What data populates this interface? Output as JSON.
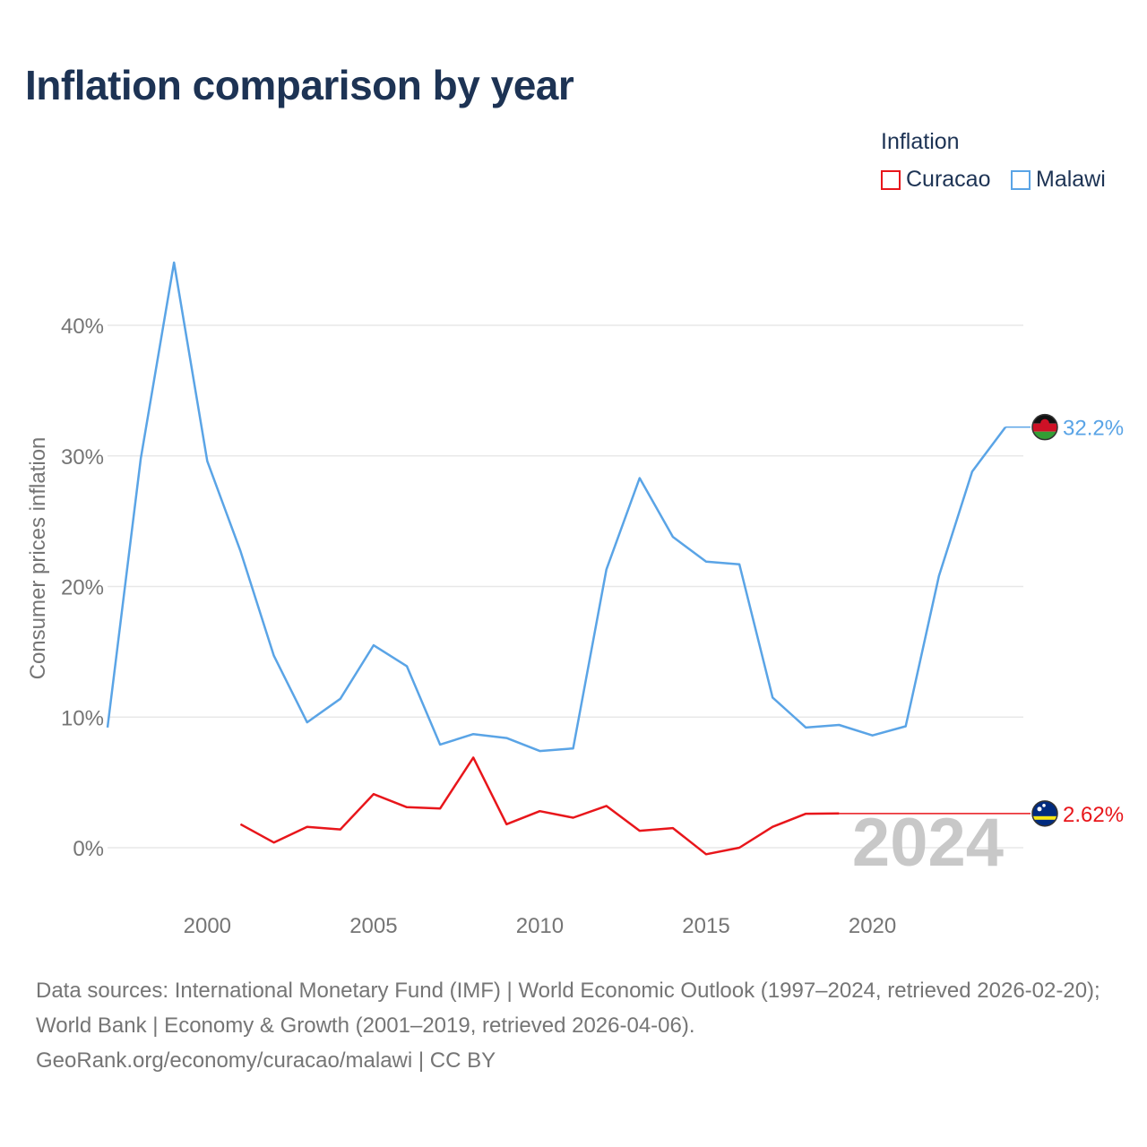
{
  "title": "Inflation comparison by year",
  "legend": {
    "title": "Inflation",
    "items": [
      {
        "label": "Curacao",
        "color": "#e8161b"
      },
      {
        "label": "Malawi",
        "color": "#5aa4e6"
      }
    ]
  },
  "source": {
    "line1": "Data sources: International Monetary Fund (IMF) | World Economic Outlook (1997–2024, retrieved 2026-02-20); World Bank | Economy & Growth (2001–2019, retrieved 2026-04-06).",
    "line2": "GeoRank.org/economy/curacao/malawi | CC BY"
  },
  "chart_data": {
    "type": "line",
    "title": "Inflation comparison by year",
    "xlabel": "",
    "ylabel": "Consumer prices inflation",
    "xlim": [
      1997,
      2024
    ],
    "ylim": [
      -5,
      45
    ],
    "year_watermark": "2024",
    "x_ticks": [
      {
        "value": 2000,
        "label": "2000"
      },
      {
        "value": 2005,
        "label": "2005"
      },
      {
        "value": 2010,
        "label": "2010"
      },
      {
        "value": 2015,
        "label": "2015"
      },
      {
        "value": 2020,
        "label": "2020"
      }
    ],
    "y_ticks": [
      {
        "value": 0,
        "label": "0%"
      },
      {
        "value": 10,
        "label": "10%"
      },
      {
        "value": 20,
        "label": "20%"
      },
      {
        "value": 30,
        "label": "30%"
      },
      {
        "value": 40,
        "label": "40%"
      }
    ],
    "series": [
      {
        "name": "Malawi",
        "color": "#5aa4e6",
        "end_label": "32.2%",
        "end_value": 32.2,
        "x": [
          1997,
          1998,
          1999,
          2000,
          2001,
          2002,
          2003,
          2004,
          2005,
          2006,
          2007,
          2008,
          2009,
          2010,
          2011,
          2012,
          2013,
          2014,
          2015,
          2016,
          2017,
          2018,
          2019,
          2020,
          2021,
          2022,
          2023,
          2024
        ],
        "values": [
          9.2,
          29.8,
          44.8,
          29.6,
          22.7,
          14.7,
          9.6,
          11.4,
          15.5,
          13.9,
          7.9,
          8.7,
          8.4,
          7.4,
          7.6,
          21.3,
          28.3,
          23.8,
          21.9,
          21.7,
          11.5,
          9.2,
          9.4,
          8.6,
          9.3,
          20.8,
          28.8,
          32.2
        ]
      },
      {
        "name": "Curacao",
        "color": "#e8161b",
        "end_label": "2.62%",
        "end_value": 2.62,
        "x": [
          2001,
          2002,
          2003,
          2004,
          2005,
          2006,
          2007,
          2008,
          2009,
          2010,
          2011,
          2012,
          2013,
          2014,
          2015,
          2016,
          2017,
          2018,
          2019
        ],
        "values": [
          1.8,
          0.4,
          1.6,
          1.4,
          4.1,
          3.1,
          3.0,
          6.9,
          1.8,
          2.8,
          2.3,
          3.2,
          1.3,
          1.5,
          -0.5,
          0.0,
          1.6,
          2.6,
          2.62
        ]
      }
    ]
  }
}
